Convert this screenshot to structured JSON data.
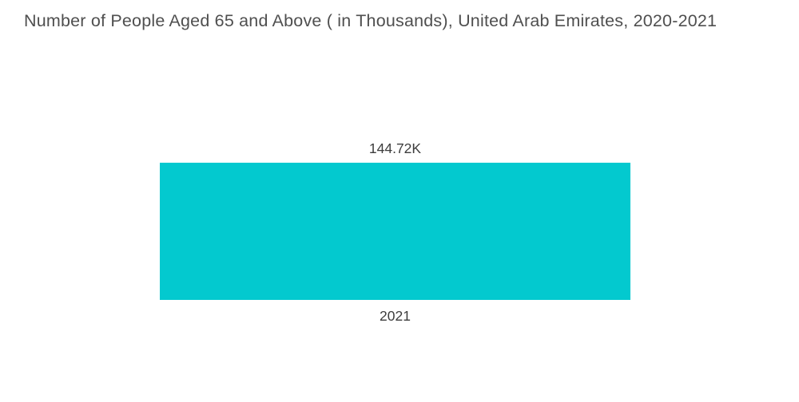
{
  "chart": {
    "title": "Number of People Aged 65 and Above ( in Thousands), United Arab Emirates, 2020-2021",
    "bar_color": "#03C9CF",
    "text_color": "#4f4f4f",
    "value_label": "144.72K",
    "category_label": "2021"
  },
  "chart_data": {
    "type": "bar",
    "title": "Number of People Aged 65 and Above ( in Thousands), United Arab Emirates, 2020-2021",
    "categories": [
      "2021"
    ],
    "values": [
      144.72
    ],
    "value_labels": [
      "144.72K"
    ],
    "unit": "Thousands",
    "xlabel": "",
    "ylabel": "",
    "ylim": [
      0,
      144.72
    ],
    "grid": false,
    "legend": false,
    "orientation": "vertical",
    "colors": [
      "#03C9CF"
    ],
    "background": "#ffffff"
  }
}
